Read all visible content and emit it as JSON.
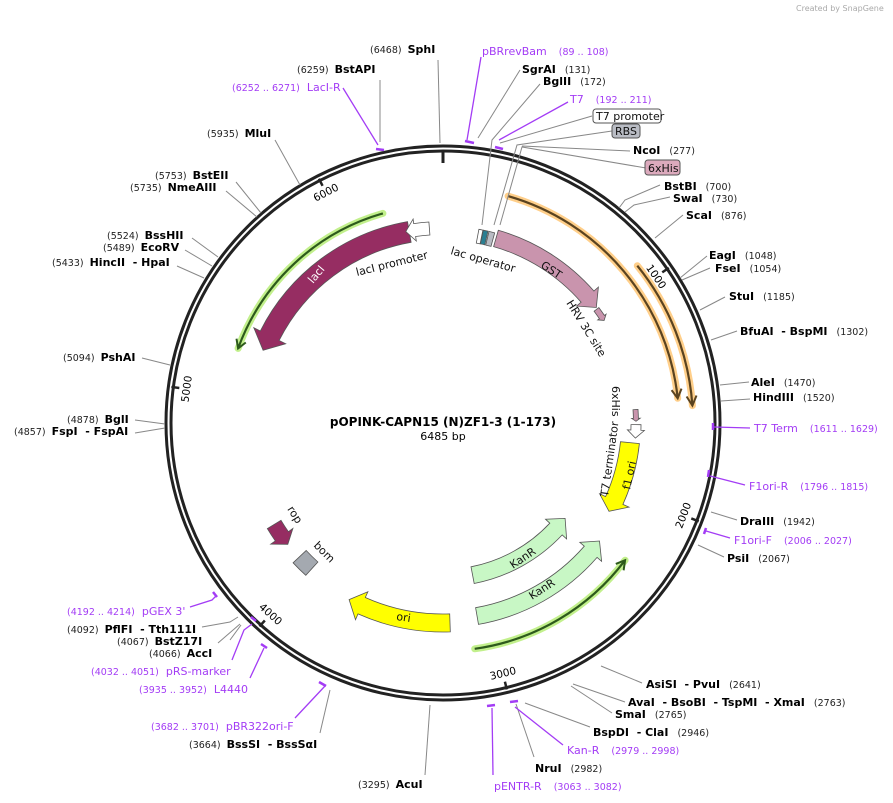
{
  "watermark": "Created by SnapGene",
  "map": {
    "title": "pOPINK-CAPN15 (N)ZF1-3 (1-173)",
    "length": "6485 bp"
  },
  "ticks": [
    "1000",
    "2000",
    "3000",
    "4000",
    "5000",
    "6000"
  ],
  "sites": [
    {
      "name": "SphI",
      "pos": "(6468)"
    },
    {
      "name": "BstAPI",
      "pos": "(6259)"
    },
    {
      "name": "MluI",
      "pos": "(5935)"
    },
    {
      "name": "BstEII",
      "pos": "(5753)"
    },
    {
      "name": "NmeAIII",
      "pos": "(5735)"
    },
    {
      "name": "BssHII",
      "pos": "(5524)"
    },
    {
      "name": "EcoRV",
      "pos": "(5489)"
    },
    {
      "name": "HincII  - HpaI",
      "pos": "(5433)"
    },
    {
      "name": "PshAI",
      "pos": "(5094)"
    },
    {
      "name": "BglI",
      "pos": "(4878)"
    },
    {
      "name": "FspI  - FspAI",
      "pos": "(4857)"
    },
    {
      "name": "PflFI  - Tth111I",
      "pos": "(4092)"
    },
    {
      "name": "BstZ17I",
      "pos": "(4067)"
    },
    {
      "name": "AccI",
      "pos": "(4066)"
    },
    {
      "name": "BssSI  - BssSαI",
      "pos": "(3664)"
    },
    {
      "name": "AcuI",
      "pos": "(3295)"
    },
    {
      "name": "NruI",
      "pos": "(2982)"
    },
    {
      "name": "BspDI  - ClaI",
      "pos": "(2946)"
    },
    {
      "name": "SmaI",
      "pos": "(2765)"
    },
    {
      "name": "AvaI  - BsoBI  - TspMI  - XmaI",
      "pos": "(2763)"
    },
    {
      "name": "AsiSI  - PvuI",
      "pos": "(2641)"
    },
    {
      "name": "PsiI",
      "pos": "(2067)"
    },
    {
      "name": "DraIII",
      "pos": "(1942)"
    },
    {
      "name": "HindIII",
      "pos": "(1520)"
    },
    {
      "name": "AleI",
      "pos": "(1470)"
    },
    {
      "name": "BfuAI  - BspMI",
      "pos": "(1302)"
    },
    {
      "name": "StuI",
      "pos": "(1185)"
    },
    {
      "name": "FseI",
      "pos": "(1054)"
    },
    {
      "name": "EagI",
      "pos": "(1048)"
    },
    {
      "name": "ScaI",
      "pos": "(876)"
    },
    {
      "name": "SwaI",
      "pos": "(730)"
    },
    {
      "name": "BstBI",
      "pos": "(700)"
    },
    {
      "name": "NcoI",
      "pos": "(277)"
    },
    {
      "name": "BglII",
      "pos": "(172)"
    },
    {
      "name": "SgrAI",
      "pos": "(131)"
    }
  ],
  "primers": [
    {
      "name": "pBRrevBam",
      "range": "(89 .. 108)"
    },
    {
      "name": "T7",
      "range": "(192 .. 211)"
    },
    {
      "name": "T7 Term",
      "range": "(1611 .. 1629)"
    },
    {
      "name": "F1ori-R",
      "range": "(1796 .. 1815)"
    },
    {
      "name": "F1ori-F",
      "range": "(2006 .. 2027)"
    },
    {
      "name": "pENTR-R",
      "range": "(3063 .. 3082)"
    },
    {
      "name": "Kan-R",
      "range": "(2979 .. 2998)"
    },
    {
      "name": "pBR322ori-F",
      "range": "(3682 .. 3701)"
    },
    {
      "name": "L4440",
      "range": "(3935 .. 3952)"
    },
    {
      "name": "pRS-marker",
      "range": "(4032 .. 4051)"
    },
    {
      "name": "pGEX 3'",
      "range": "(4192 .. 4214)"
    },
    {
      "name": "LacI-R",
      "range": "(6252 .. 6271)"
    }
  ],
  "feature_boxes": [
    {
      "name": "T7 promoter",
      "color": "#ffffff"
    },
    {
      "name": "RBS",
      "color": "#b9bcc4"
    },
    {
      "name": "6xHis",
      "color": "#dcaabd"
    }
  ],
  "features": {
    "lacI": "lacI",
    "lacI_promoter": "lacI promoter",
    "lac_operator": "lac operator",
    "GST": "GST",
    "HRV": "HRV 3C site",
    "his": "6xHis",
    "t7term": "T7 terminator",
    "f1ori": "f1 ori",
    "kanr1": "KanR",
    "kanr2": "KanR",
    "ori": "ori",
    "rop": "rop",
    "bom": "bom"
  },
  "colors": {
    "primer": "#a33cf5",
    "lacI": "#962d62",
    "GST": "#c994ad",
    "ori": "#ffff00",
    "KanR": "#c8f7c5",
    "bom": "#a4a9b0"
  }
}
